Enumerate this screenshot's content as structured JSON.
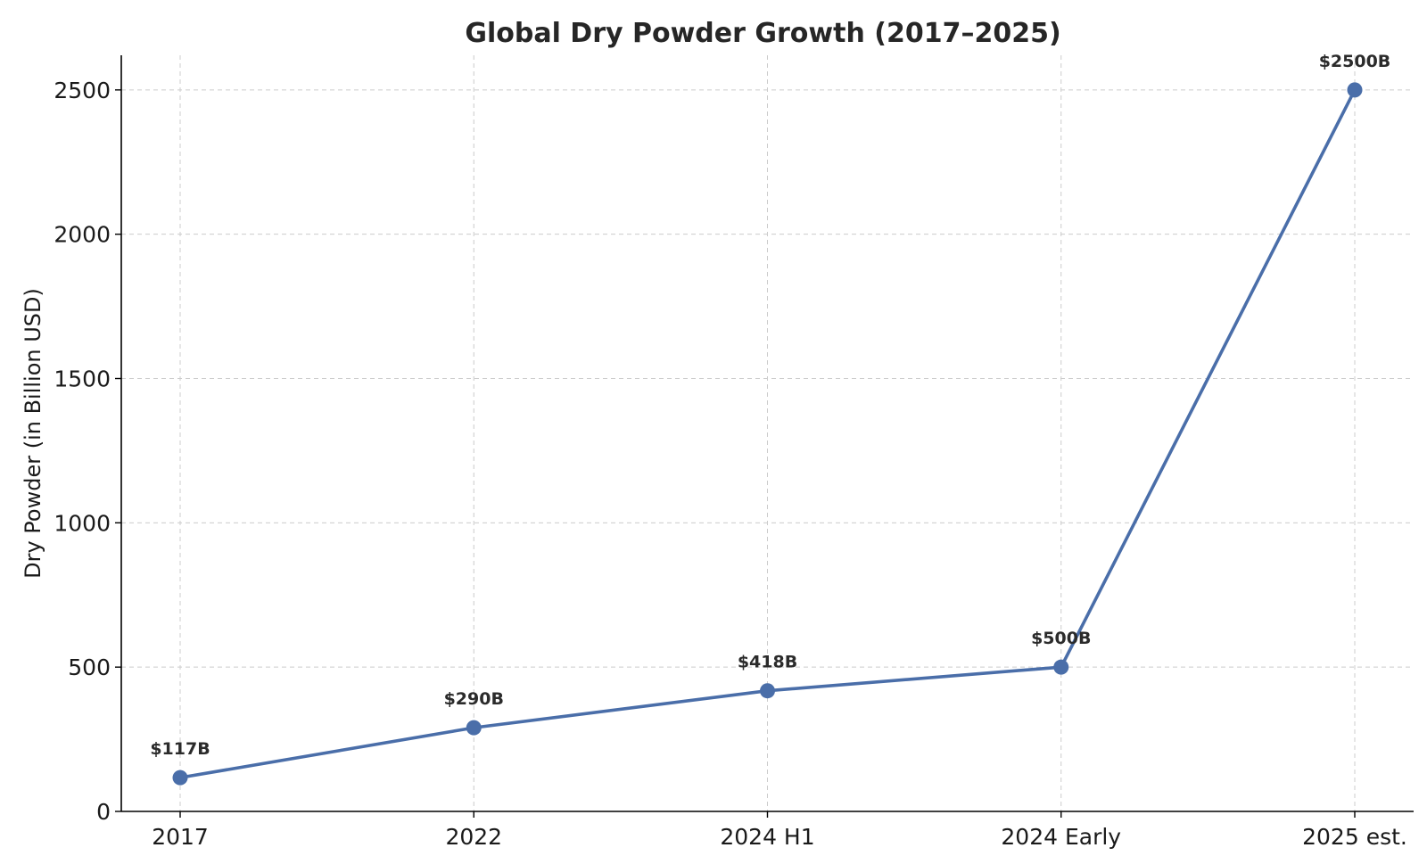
{
  "chart_data": {
    "type": "line",
    "title": "Global Dry Powder Growth (2017–2025)",
    "xlabel": "",
    "ylabel": "Dry Powder (in Billion USD)",
    "categories": [
      "2017",
      "2022",
      "2024 H1",
      "2024 Early",
      "2025 est."
    ],
    "series": [
      {
        "values": [
          117,
          290,
          418,
          500,
          2500
        ],
        "color": "#4a6ea9",
        "marker": "circle"
      }
    ],
    "data_labels": [
      "$117B",
      "$290B",
      "$418B",
      "$500B",
      "$2500B"
    ],
    "ylim": [
      0,
      2620
    ],
    "yticks": [
      0,
      500,
      1000,
      1500,
      2000,
      2500
    ],
    "grid": true,
    "legend": "none"
  }
}
